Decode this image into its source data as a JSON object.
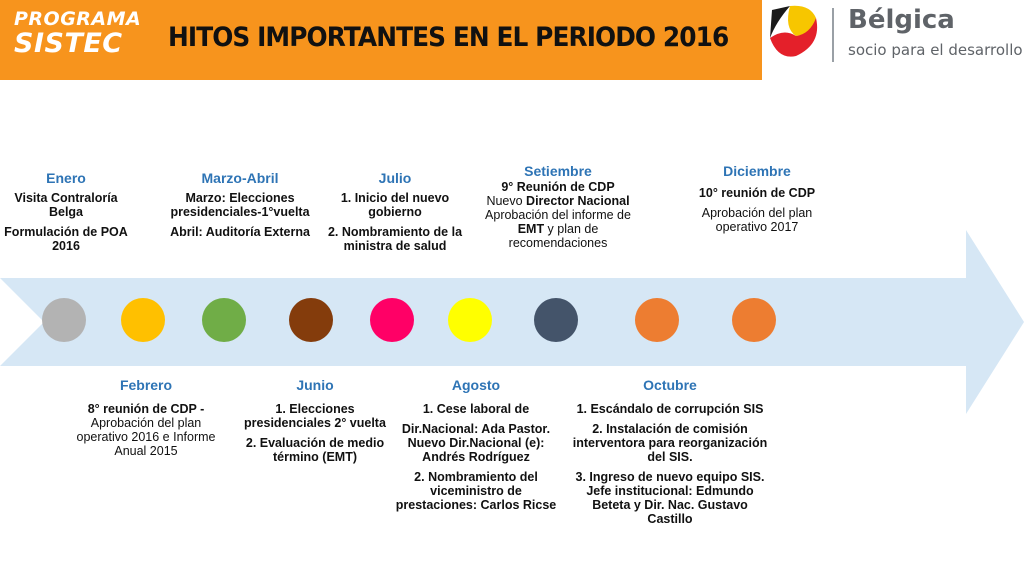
{
  "header": {
    "program_line1": "PROGRAMA",
    "program_line2": "SISTEC",
    "title": "HITOS IMPORTANTES EN EL PERIODO 2016",
    "background": "#f7941d"
  },
  "logo": {
    "name": "Bélgica",
    "subtitle": "socio para el desarrollo"
  },
  "timeline": {
    "arrow_color": "#d6e7f5",
    "dot_colors": [
      "#b3b3b3",
      "#ffc000",
      "#70ad47",
      "#843c0c",
      "#ff0066",
      "#ffff00",
      "#44546a",
      "#ed7d31",
      "#ed7d31"
    ]
  },
  "top": {
    "enero": {
      "month": "Enero",
      "l1": "Visita Contraloría Belga",
      "l2": "Formulación de POA 2016"
    },
    "marzo": {
      "month": "Marzo-Abril",
      "l1": "Marzo: Elecciones presidenciales-1°vuelta",
      "l2": "Abril: Auditoría Externa"
    },
    "julio": {
      "month": "Julio",
      "l1": "1. Inicio del nuevo gobierno",
      "l2": "2. Nombramiento de la ministra de salud"
    },
    "setiembre": {
      "month": "Setiembre",
      "l1": "9° Reunión de CDP",
      "l2a": "Nuevo ",
      "l2b": "Director Nacional",
      "l3a": "Aprobación del informe de ",
      "l3b": "EMT",
      "l3c": " y plan de recomendaciones"
    },
    "diciembre": {
      "month": "Diciembre",
      "l1": "10° reunión de CDP",
      "l2": "Aprobación del plan operativo 2017"
    }
  },
  "bottom": {
    "febrero": {
      "month": "Febrero",
      "l1": "8° reunión de CDP -",
      "l2": "Aprobación del plan operativo 2016 e Informe Anual 2015"
    },
    "junio": {
      "month": "Junio",
      "l1": "1. Elecciones presidenciales 2° vuelta",
      "l2": "2. Evaluación de medio término (EMT)"
    },
    "agosto": {
      "month": "Agosto",
      "l1": "1. Cese laboral de",
      "l2": "Dir.Nacional: Ada Pastor. Nuevo Dir.Nacional (e): Andrés Rodríguez",
      "l3": "2. Nombramiento del viceministro de prestaciones: Carlos Ricse"
    },
    "octubre": {
      "month": "Octubre",
      "l1": "1. Escándalo de corrupción SIS",
      "l2": "2. Instalación de comisión interventora para reorganización del  SIS.",
      "l3": "3. Ingreso de nuevo equipo SIS. Jefe institucional: Edmundo Beteta y Dir. Nac. Gustavo Castillo"
    }
  }
}
